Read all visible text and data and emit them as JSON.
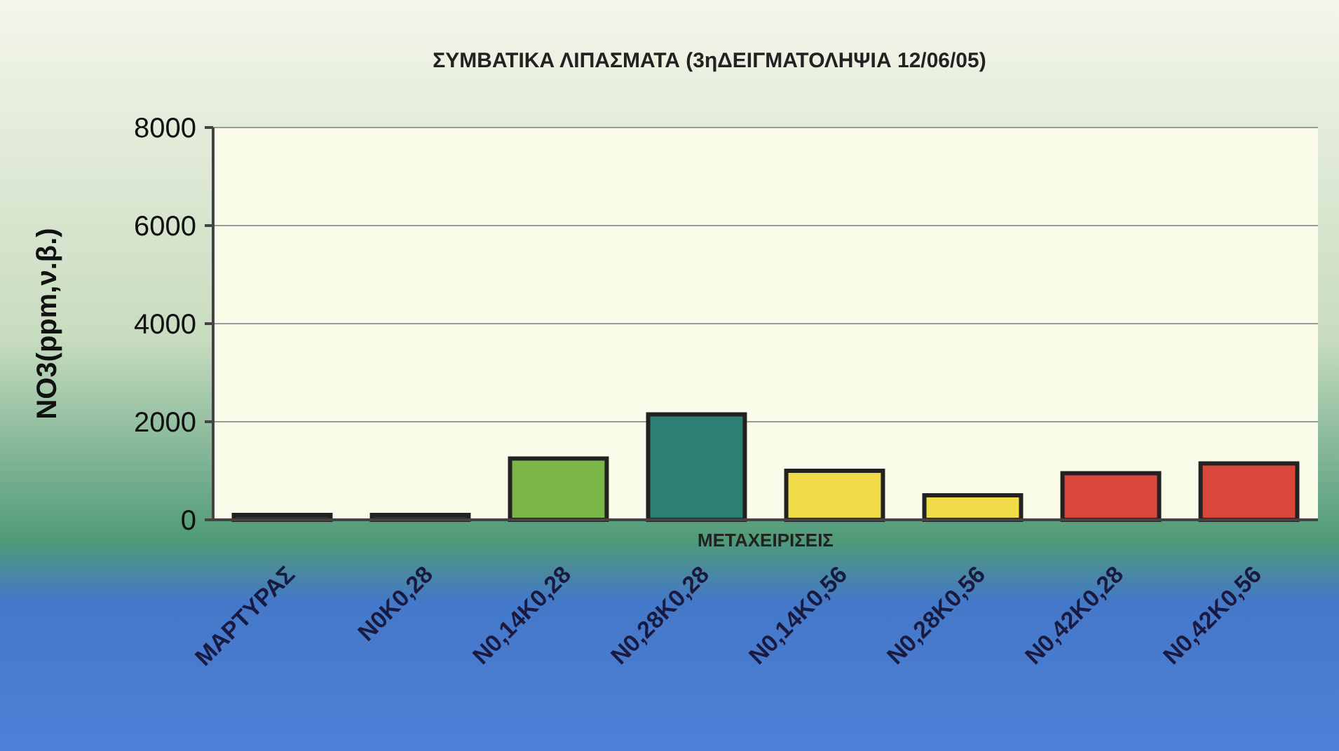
{
  "chart_data": {
    "type": "bar",
    "title": "ΣΥΜΒΑΤΙΚΑ ΛΙΠΑΣΜΑΤΑ (3ηΔΕΙΓΜΑΤΟΛΗΨΙΑ 12/06/05)",
    "xlabel": "ΜΕΤΑΧΕΙΡΙΣΕΙΣ",
    "ylabel": "NO3(ppm,ν.β.)",
    "categories": [
      "ΜΑΡΤΥΡΑΣ",
      "N0K0,28",
      "N0,14K0,28",
      "N0,28K0,28",
      "N0,14K0,56",
      "N0,28K0,56",
      "N0,42K0,28",
      "N0,42K0,56"
    ],
    "values": [
      100,
      100,
      1250,
      2150,
      1000,
      500,
      950,
      1150
    ],
    "colors": [
      "#3c3c3c",
      "#3c3c3c",
      "#7ab648",
      "#2e7f73",
      "#f0dc48",
      "#f0dc48",
      "#d9473a",
      "#d9473a"
    ],
    "ylim": [
      0,
      8000
    ],
    "yticks": [
      0,
      2000,
      4000,
      6000,
      8000
    ],
    "grid": "y"
  }
}
